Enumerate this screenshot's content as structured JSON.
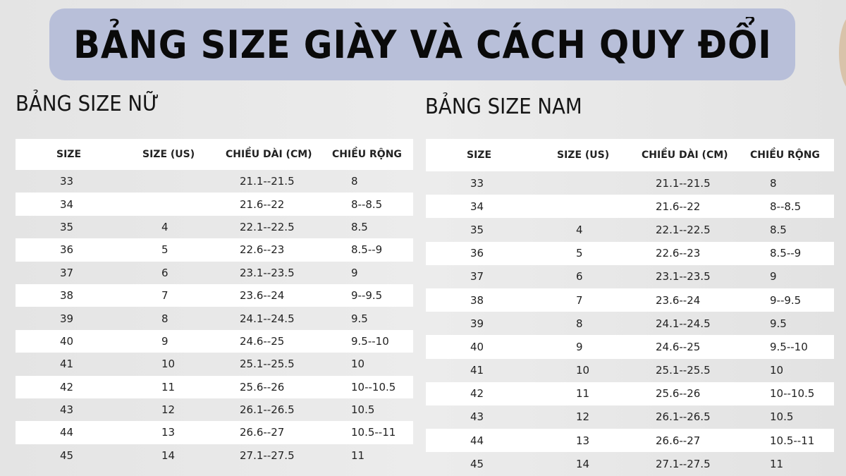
{
  "title": "BẢNG SIZE GIÀY VÀ CÁCH QUY ĐỔI",
  "colors": {
    "title_band": "#b8bfd9",
    "row_alt": "#ffffff",
    "background": "#e6e6e6"
  },
  "columns": [
    "SIZE",
    "SIZE (US)",
    "CHIỀU DÀI (CM)",
    "CHIỀU RỘNG"
  ],
  "tables": [
    {
      "title": "BẢNG SIZE NỮ",
      "rows": [
        [
          "33",
          "",
          "21.1--21.5",
          "8"
        ],
        [
          "34",
          "",
          "21.6--22",
          "8--8.5"
        ],
        [
          "35",
          "4",
          "22.1--22.5",
          "8.5"
        ],
        [
          "36",
          "5",
          "22.6--23",
          "8.5--9"
        ],
        [
          "37",
          "6",
          "23.1--23.5",
          "9"
        ],
        [
          "38",
          "7",
          "23.6--24",
          "9--9.5"
        ],
        [
          "39",
          "8",
          "24.1--24.5",
          "9.5"
        ],
        [
          "40",
          "9",
          "24.6--25",
          "9.5--10"
        ],
        [
          "41",
          "10",
          "25.1--25.5",
          "10"
        ],
        [
          "42",
          "11",
          "25.6--26",
          "10--10.5"
        ],
        [
          "43",
          "12",
          "26.1--26.5",
          "10.5"
        ],
        [
          "44",
          "13",
          "26.6--27",
          "10.5--11"
        ],
        [
          "45",
          "14",
          "27.1--27.5",
          "11"
        ]
      ]
    },
    {
      "title": "BẢNG SIZE NAM",
      "rows": [
        [
          "33",
          "",
          "21.1--21.5",
          "8"
        ],
        [
          "34",
          "",
          "21.6--22",
          "8--8.5"
        ],
        [
          "35",
          "4",
          "22.1--22.5",
          "8.5"
        ],
        [
          "36",
          "5",
          "22.6--23",
          "8.5--9"
        ],
        [
          "37",
          "6",
          "23.1--23.5",
          "9"
        ],
        [
          "38",
          "7",
          "23.6--24",
          "9--9.5"
        ],
        [
          "39",
          "8",
          "24.1--24.5",
          "9.5"
        ],
        [
          "40",
          "9",
          "24.6--25",
          "9.5--10"
        ],
        [
          "41",
          "10",
          "25.1--25.5",
          "10"
        ],
        [
          "42",
          "11",
          "25.6--26",
          "10--10.5"
        ],
        [
          "43",
          "12",
          "26.1--26.5",
          "10.5"
        ],
        [
          "44",
          "13",
          "26.6--27",
          "10.5--11"
        ],
        [
          "45",
          "14",
          "27.1--27.5",
          "11"
        ]
      ]
    }
  ]
}
